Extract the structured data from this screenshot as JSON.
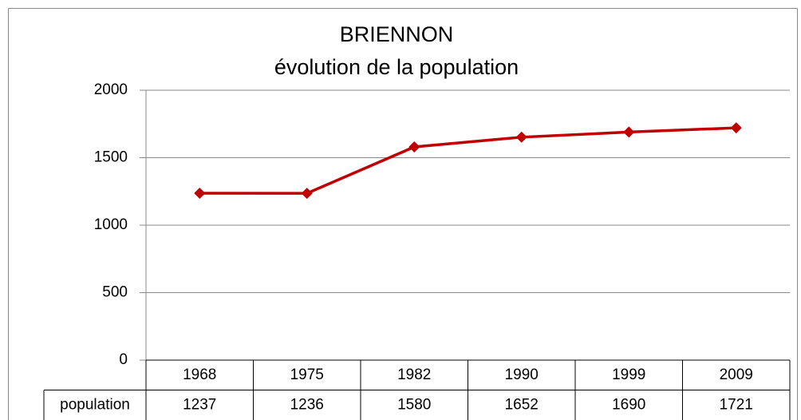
{
  "chart_data": {
    "type": "line",
    "title": "BRIENNON",
    "subtitle": "évolution de la population",
    "categories": [
      "1968",
      "1975",
      "1982",
      "1990",
      "1999",
      "2009"
    ],
    "series": [
      {
        "name": "population",
        "color": "#c00000",
        "values": [
          1237,
          1236,
          1580,
          1652,
          1690,
          1721
        ]
      }
    ],
    "ylim": [
      0,
      2000
    ],
    "yticks": [
      0,
      500,
      1000,
      1500,
      2000
    ],
    "grid": true,
    "data_table": true
  }
}
